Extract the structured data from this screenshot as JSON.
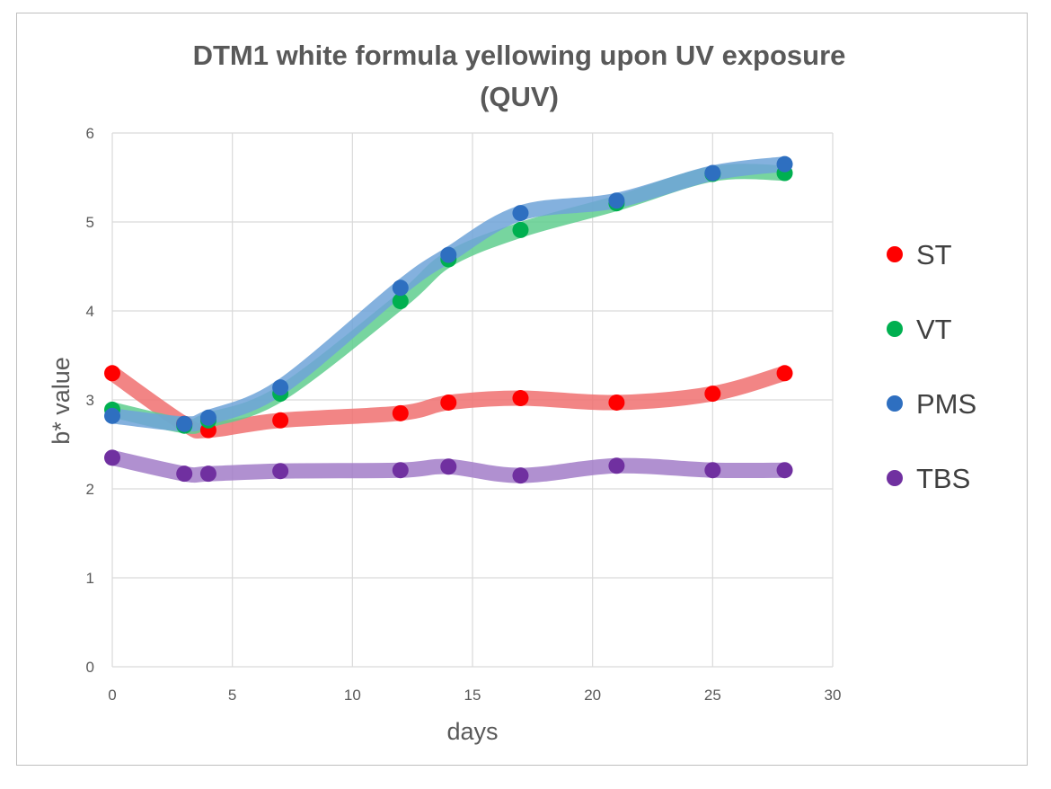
{
  "chart_data": {
    "type": "scatter",
    "title_lines": [
      "DTM1 white formula yellowing upon UV exposure",
      "(QUV)"
    ],
    "xlabel": "days",
    "ylabel": "b* value",
    "xlim": [
      0,
      30
    ],
    "ylim": [
      0,
      6
    ],
    "x_ticks": [
      0,
      5,
      10,
      15,
      20,
      25,
      30
    ],
    "y_ticks": [
      0,
      1,
      2,
      3,
      4,
      5,
      6
    ],
    "x_tick_labels": [
      "0",
      "5",
      "10",
      "15",
      "20",
      "25",
      "30"
    ],
    "y_tick_labels": [
      "0",
      "1",
      "2",
      "3",
      "4",
      "5",
      "6"
    ],
    "grid": true,
    "trendline": "smoothed",
    "legend_position": "right",
    "series": [
      {
        "name": "ST",
        "color": "#ff0000",
        "trend_color": "#f07070",
        "x": [
          0,
          3,
          4,
          7,
          12,
          14,
          17,
          21,
          25,
          28
        ],
        "y": [
          3.3,
          2.73,
          2.66,
          2.77,
          2.85,
          2.97,
          3.02,
          2.97,
          3.07,
          3.3
        ]
      },
      {
        "name": "VT",
        "color": "#00b050",
        "trend_color": "#5fce8e",
        "x": [
          0,
          3,
          4,
          7,
          12,
          14,
          17,
          21,
          25,
          28
        ],
        "y": [
          2.89,
          2.71,
          2.77,
          3.07,
          4.11,
          4.58,
          4.91,
          5.21,
          5.54,
          5.55
        ]
      },
      {
        "name": "PMS",
        "color": "#2e6fc0",
        "trend_color": "#6fa3d8",
        "x": [
          0,
          3,
          4,
          7,
          12,
          14,
          17,
          21,
          25,
          28
        ],
        "y": [
          2.82,
          2.73,
          2.8,
          3.14,
          4.26,
          4.63,
          5.1,
          5.24,
          5.55,
          5.65
        ]
      },
      {
        "name": "TBS",
        "color": "#7030a0",
        "trend_color": "#a27cc8",
        "x": [
          0,
          3,
          4,
          7,
          12,
          14,
          17,
          21,
          25,
          28
        ],
        "y": [
          2.35,
          2.17,
          2.17,
          2.2,
          2.21,
          2.25,
          2.15,
          2.26,
          2.21,
          2.21
        ]
      }
    ]
  }
}
